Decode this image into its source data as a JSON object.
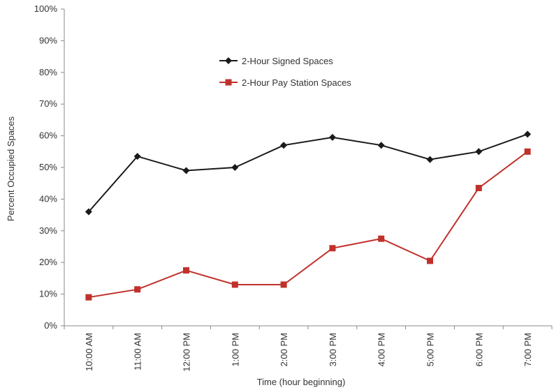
{
  "chart_data": {
    "type": "line",
    "title": "",
    "xlabel": "Time (hour beginning)",
    "ylabel": "Percent Occupied Spaces",
    "ylim": [
      0,
      100
    ],
    "y_ticks": [
      "0%",
      "10%",
      "20%",
      "30%",
      "40%",
      "50%",
      "60%",
      "70%",
      "80%",
      "90%",
      "100%"
    ],
    "categories": [
      "10:00 AM",
      "11:00 AM",
      "12:00 PM",
      "1:00 PM",
      "2:00 PM",
      "3:00 PM",
      "4:00 PM",
      "5:00 PM",
      "6:00 PM",
      "7:00 PM"
    ],
    "grid": false,
    "legend_position": "top-center",
    "series": [
      {
        "name": "2-Hour Signed Spaces",
        "color": "#1a1a1a",
        "marker": "diamond",
        "values": [
          36,
          53.5,
          49,
          50,
          57,
          59.5,
          57,
          52.5,
          55,
          60.5
        ]
      },
      {
        "name": "2-Hour Pay Station Spaces",
        "color": "#c0312b",
        "marker": "square",
        "values": [
          9,
          11.5,
          17.5,
          13,
          13,
          24.5,
          27.5,
          20.5,
          43.5,
          55
        ]
      }
    ]
  }
}
